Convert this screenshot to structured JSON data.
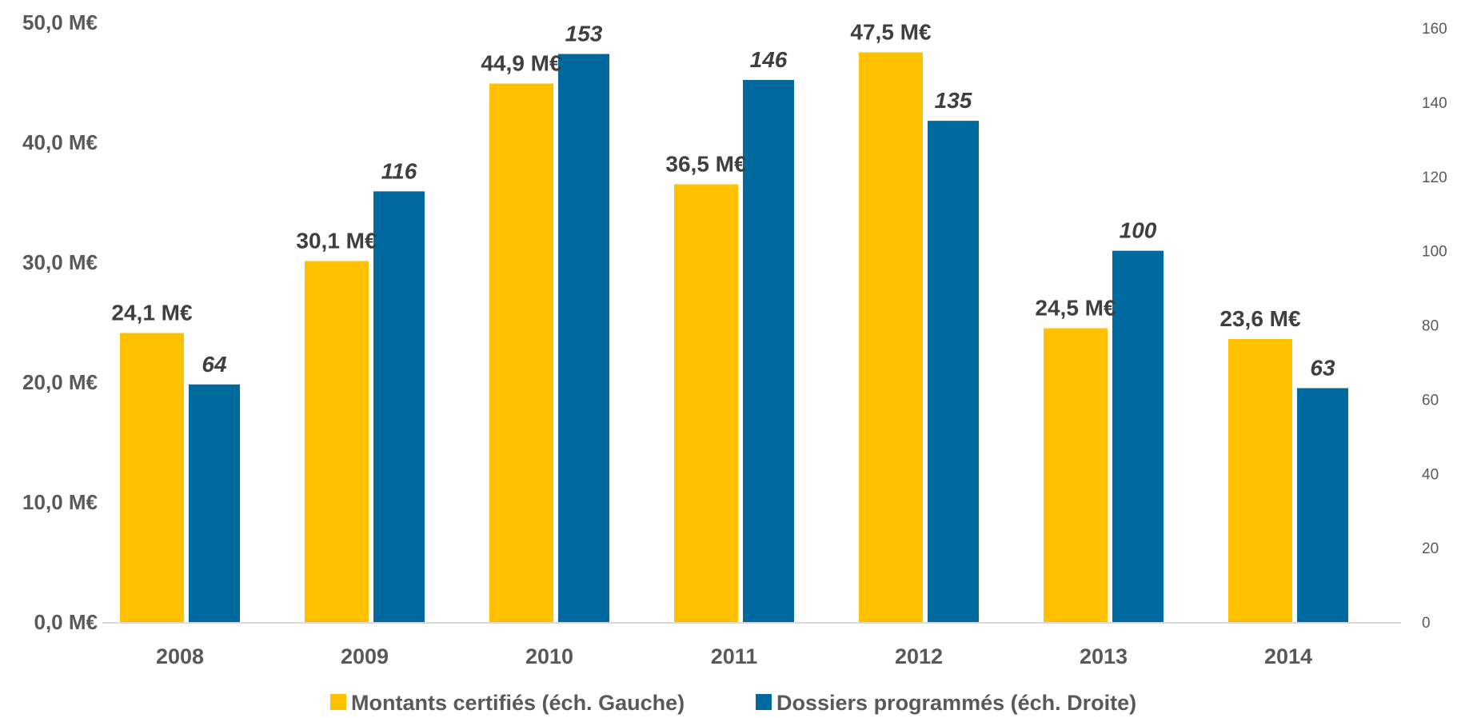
{
  "chart_data": {
    "type": "bar",
    "categories": [
      "2008",
      "2009",
      "2010",
      "2011",
      "2012",
      "2013",
      "2014"
    ],
    "series": [
      {
        "name": "Montants certifiés (éch. Gauche)",
        "axis": "left",
        "color": "#FFC000",
        "values": [
          24.1,
          30.1,
          44.9,
          36.5,
          47.5,
          24.5,
          23.6
        ],
        "labels": [
          "24,1 M€",
          "30,1 M€",
          "44,9 M€",
          "36,5 M€",
          "47,5 M€",
          "24,5 M€",
          "23,6 M€"
        ]
      },
      {
        "name": "Dossiers programmés (éch. Droite)",
        "axis": "right",
        "color": "#006A9E",
        "values": [
          64,
          116,
          153,
          146,
          135,
          100,
          63
        ],
        "labels": [
          "64",
          "116",
          "153",
          "146",
          "135",
          "100",
          "63"
        ]
      }
    ],
    "y_left": {
      "range": [
        0,
        50
      ],
      "ticks": [
        0,
        10,
        20,
        30,
        40,
        50
      ],
      "tick_labels": [
        "0,0 M€",
        "10,0 M€",
        "20,0 M€",
        "30,0 M€",
        "40,0 M€",
        "50,0 M€"
      ]
    },
    "y_right": {
      "range": [
        0,
        160
      ],
      "ticks": [
        0,
        20,
        40,
        60,
        80,
        100,
        120,
        140,
        160
      ],
      "tick_labels": [
        "0",
        "20",
        "40",
        "60",
        "80",
        "100",
        "120",
        "140",
        "160"
      ]
    },
    "grid": false,
    "legend": "bottom",
    "axis_color": "#D9D9D9"
  }
}
